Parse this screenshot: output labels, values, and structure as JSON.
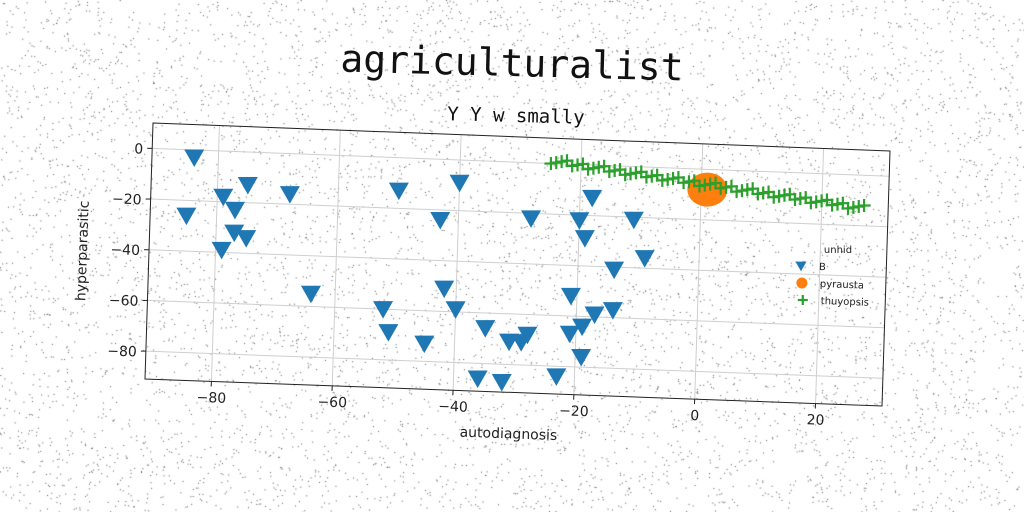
{
  "chart_data": {
    "type": "scatter",
    "title": "agriculturalist",
    "subtitle": "Y Y w smally",
    "xlabel": "autodiagnosis",
    "ylabel": "hyperparasitic",
    "xlim": [
      -91,
      31
    ],
    "ylim": [
      -91,
      10
    ],
    "xticks": [
      -80,
      -60,
      -40,
      -20,
      0,
      20
    ],
    "yticks": [
      0,
      -20,
      -40,
      -60,
      -80
    ],
    "grid": true,
    "legend": {
      "title": "unhid",
      "position": "right"
    },
    "series": [
      {
        "name": "B",
        "marker": "triangle-down",
        "color": "#1f77b4",
        "points": [
          [
            -84,
            -3
          ],
          [
            -85,
            -26
          ],
          [
            -79,
            -18
          ],
          [
            -77,
            -23
          ],
          [
            -77,
            -32
          ],
          [
            -75,
            -34
          ],
          [
            -75,
            -13
          ],
          [
            -79,
            -39
          ],
          [
            -68,
            -16
          ],
          [
            -64,
            -55
          ],
          [
            -52,
            -60
          ],
          [
            -51,
            -69
          ],
          [
            -50,
            -13
          ],
          [
            -45,
            -73
          ],
          [
            -43,
            -24
          ],
          [
            -42,
            -51
          ],
          [
            -40,
            -59
          ],
          [
            -40,
            -9
          ],
          [
            -36,
            -86
          ],
          [
            -35,
            -66
          ],
          [
            -32,
            -87
          ],
          [
            -31,
            -71
          ],
          [
            -29,
            -71
          ],
          [
            -28,
            -68
          ],
          [
            -28,
            -22
          ],
          [
            -23,
            -84
          ],
          [
            -21,
            -52
          ],
          [
            -21,
            -67
          ],
          [
            -20,
            -22
          ],
          [
            -19,
            -64
          ],
          [
            -19,
            -76
          ],
          [
            -19,
            -29
          ],
          [
            -18,
            -13
          ],
          [
            -17,
            -59
          ],
          [
            -14,
            -57
          ],
          [
            -14,
            -41
          ],
          [
            -11,
            -21
          ],
          [
            -9,
            -36
          ]
        ]
      },
      {
        "name": "pyrausta",
        "marker": "circle",
        "color": "#ff7f0e",
        "points": [
          [
            1,
            -8
          ]
        ]
      },
      {
        "name": "thuyopsis",
        "marker": "plus",
        "color": "#2ca02c",
        "line_from": [
          -25,
          1
        ],
        "line_to": [
          27,
          -13
        ],
        "count": 60
      }
    ]
  }
}
